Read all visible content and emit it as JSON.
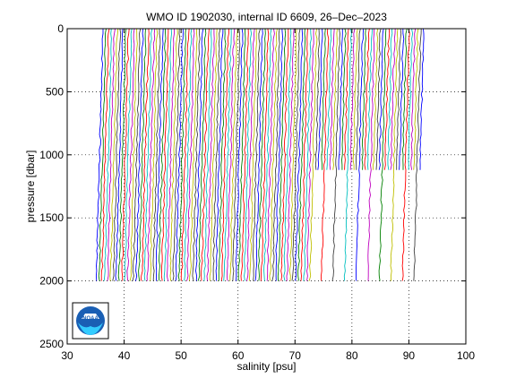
{
  "chart_data": {
    "type": "line",
    "title": "WMO ID 1902030, internal ID 6609, 26–Dec–2023",
    "xlabel": "salinity [psu]",
    "ylabel": "pressure [dbar]",
    "xlim": [
      30,
      100
    ],
    "ylim": [
      0,
      2500
    ],
    "y_reversed": true,
    "grid": true,
    "grid_style": "dotted",
    "x_ticks": [
      30,
      40,
      50,
      60,
      70,
      80,
      90,
      100
    ],
    "y_ticks": [
      0,
      500,
      1000,
      1500,
      2000,
      2500
    ],
    "series_description": "Many waterfall-offset salinity profiles, each shifted right by a constant offset, colors cycling",
    "profile_groups": [
      {
        "first_offset_salinity": 35.5,
        "last_offset_salinity": 72.5,
        "count": 75,
        "max_pressure": 2000
      },
      {
        "first_offset_salinity": 73.0,
        "last_offset_salinity": 91.8,
        "count": 38,
        "max_pressure": 2000,
        "shallow_count": 28,
        "shallow_max_pressure": 1120
      }
    ],
    "line_colors": [
      "#0000ff",
      "#008000",
      "#ff0000",
      "#00bfbf",
      "#bf00bf",
      "#bfbf00",
      "#404040"
    ],
    "logo": "noaa-logo"
  }
}
